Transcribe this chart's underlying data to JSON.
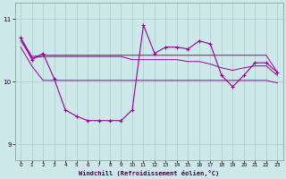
{
  "xlabel": "Windchill (Refroidissement éolien,°C)",
  "bg_color": "#cce8e8",
  "grid_color": "#aacccc",
  "line_color": "#990099",
  "hours": [
    0,
    1,
    2,
    3,
    4,
    5,
    6,
    7,
    8,
    9,
    10,
    11,
    12,
    13,
    14,
    15,
    16,
    17,
    18,
    19,
    20,
    21,
    22,
    23
  ],
  "line_main": [
    10.7,
    10.35,
    10.45,
    10.05,
    9.55,
    9.45,
    9.38,
    9.38,
    9.38,
    9.38,
    9.55,
    10.9,
    10.45,
    10.55,
    10.55,
    10.52,
    10.65,
    10.6,
    10.1,
    9.92,
    10.1,
    10.3,
    10.3,
    10.15
  ],
  "line_upper1": [
    10.7,
    10.4,
    10.42,
    10.42,
    10.42,
    10.42,
    10.42,
    10.42,
    10.42,
    10.42,
    10.42,
    10.42,
    10.42,
    10.42,
    10.42,
    10.42,
    10.42,
    10.42,
    10.42,
    10.42,
    10.42,
    10.42,
    10.42,
    10.15
  ],
  "line_upper2": [
    10.65,
    10.38,
    10.4,
    10.4,
    10.4,
    10.4,
    10.4,
    10.4,
    10.4,
    10.4,
    10.35,
    10.35,
    10.35,
    10.35,
    10.35,
    10.32,
    10.32,
    10.28,
    10.22,
    10.18,
    10.22,
    10.25,
    10.25,
    10.1
  ],
  "line_lower": [
    10.55,
    10.25,
    10.02,
    10.02,
    10.02,
    10.02,
    10.02,
    10.02,
    10.02,
    10.02,
    10.02,
    10.02,
    10.02,
    10.02,
    10.02,
    10.02,
    10.02,
    10.02,
    10.02,
    10.02,
    10.02,
    10.02,
    10.02,
    9.98
  ],
  "ylim": [
    8.75,
    11.25
  ],
  "yticks": [
    9,
    10,
    11
  ],
  "xlim": [
    -0.5,
    23.5
  ],
  "xticks": [
    0,
    1,
    2,
    3,
    4,
    5,
    6,
    7,
    8,
    9,
    10,
    11,
    12,
    13,
    14,
    15,
    16,
    17,
    18,
    19,
    20,
    21,
    22,
    23
  ]
}
